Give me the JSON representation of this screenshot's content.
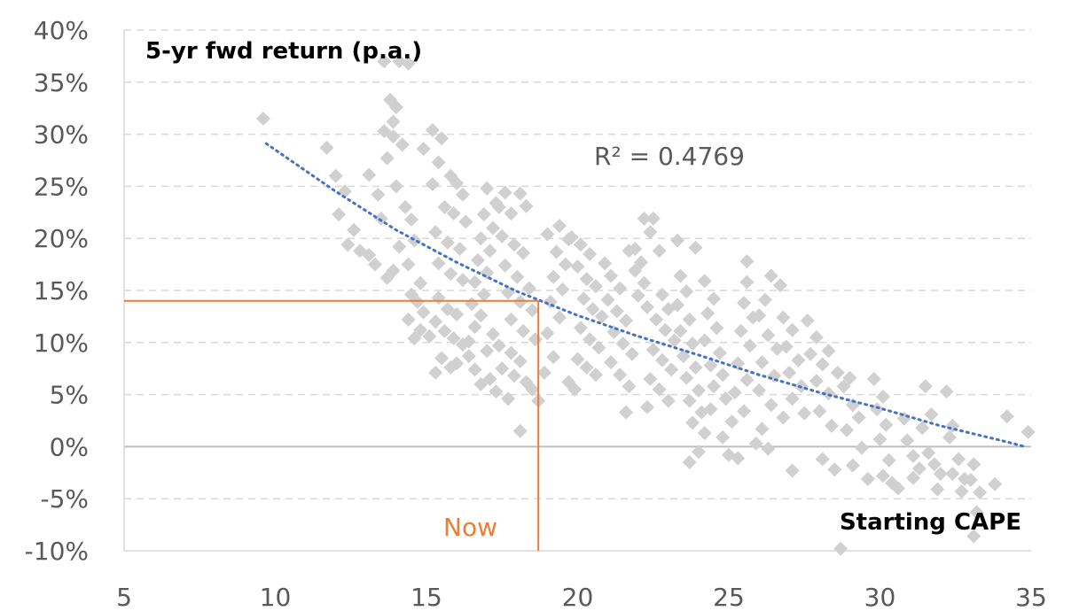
{
  "chart_data": {
    "type": "scatter",
    "title": "",
    "ylabel": "5-yr fwd return (p.a.)",
    "xlabel": "Starting CAPE",
    "xlim": [
      5,
      35
    ],
    "ylim": [
      -10,
      40
    ],
    "x_ticks": [
      "5",
      "10",
      "15",
      "20",
      "25",
      "30",
      "35"
    ],
    "y_ticks": [
      "-10%",
      "-5%",
      "0%",
      "5%",
      "10%",
      "15%",
      "20%",
      "25%",
      "30%",
      "35%",
      "40%"
    ],
    "grid": "horizontal-dashed",
    "r_squared_label": "R² = 0.4769",
    "now_label": "Now",
    "now_point": {
      "x": 18.7,
      "y": 14
    },
    "trendline": {
      "type": "exponential",
      "points": [
        [
          9.7,
          29.1
        ],
        [
          12,
          24.5
        ],
        [
          14,
          20.8
        ],
        [
          16,
          17.7
        ],
        [
          18,
          14.9
        ],
        [
          20,
          12.6
        ],
        [
          22,
          10.6
        ],
        [
          24,
          8.8
        ],
        [
          26,
          6.9
        ],
        [
          28,
          5.2
        ],
        [
          30,
          3.7
        ],
        [
          32,
          2.0
        ],
        [
          34,
          0.6
        ],
        [
          34.8,
          0.0
        ]
      ]
    },
    "series": [
      {
        "values": [
          [
            9.6,
            31.5
          ],
          [
            11.7,
            28.7
          ],
          [
            12.0,
            26.0
          ],
          [
            12.3,
            24.5
          ],
          [
            12.1,
            22.3
          ],
          [
            12.6,
            20.8
          ],
          [
            12.4,
            19.4
          ],
          [
            12.8,
            18.8
          ],
          [
            13.1,
            26.1
          ],
          [
            13.4,
            24.2
          ],
          [
            13.5,
            21.9
          ],
          [
            13.1,
            18.4
          ],
          [
            13.3,
            17.5
          ],
          [
            13.7,
            16.2
          ],
          [
            13.9,
            16.9
          ],
          [
            13.6,
            37.0
          ],
          [
            14.1,
            37.0
          ],
          [
            14.4,
            36.8
          ],
          [
            13.8,
            33.3
          ],
          [
            14.0,
            32.6
          ],
          [
            13.9,
            31.2
          ],
          [
            13.6,
            30.3
          ],
          [
            13.9,
            29.8
          ],
          [
            14.2,
            29.0
          ],
          [
            13.7,
            27.7
          ],
          [
            14.0,
            25.0
          ],
          [
            14.3,
            23.0
          ],
          [
            14.5,
            21.8
          ],
          [
            14.1,
            19.2
          ],
          [
            14.6,
            19.8
          ],
          [
            14.4,
            17.5
          ],
          [
            14.8,
            15.7
          ],
          [
            14.5,
            14.6
          ],
          [
            14.7,
            13.9
          ],
          [
            14.9,
            12.9
          ],
          [
            14.4,
            12.2
          ],
          [
            14.8,
            11.2
          ],
          [
            15.1,
            10.6
          ],
          [
            14.6,
            10.4
          ],
          [
            14.9,
            28.6
          ],
          [
            15.2,
            30.4
          ],
          [
            15.5,
            29.6
          ],
          [
            15.4,
            27.3
          ],
          [
            15.8,
            26.0
          ],
          [
            15.2,
            25.2
          ],
          [
            16.0,
            25.3
          ],
          [
            15.6,
            23.0
          ],
          [
            16.2,
            24.2
          ],
          [
            15.9,
            22.4
          ],
          [
            16.3,
            21.6
          ],
          [
            15.3,
            20.6
          ],
          [
            15.7,
            19.6
          ],
          [
            16.1,
            19.0
          ],
          [
            15.4,
            17.6
          ],
          [
            15.8,
            16.6
          ],
          [
            16.2,
            16.0
          ],
          [
            15.4,
            14.3
          ],
          [
            15.7,
            13.2
          ],
          [
            16.0,
            12.7
          ],
          [
            15.3,
            12.0
          ],
          [
            15.6,
            11.1
          ],
          [
            15.9,
            10.4
          ],
          [
            16.2,
            9.8
          ],
          [
            15.5,
            8.5
          ],
          [
            15.8,
            7.6
          ],
          [
            15.3,
            7.1
          ],
          [
            16.0,
            8.0
          ],
          [
            16.4,
            10.1
          ],
          [
            16.6,
            11.5
          ],
          [
            16.8,
            12.6
          ],
          [
            16.5,
            13.7
          ],
          [
            16.9,
            14.6
          ],
          [
            16.6,
            15.8
          ],
          [
            17.0,
            16.7
          ],
          [
            16.7,
            17.9
          ],
          [
            17.1,
            18.8
          ],
          [
            16.8,
            20.0
          ],
          [
            17.2,
            21.0
          ],
          [
            16.9,
            22.3
          ],
          [
            17.3,
            23.4
          ],
          [
            17.6,
            24.4
          ],
          [
            17.0,
            24.8
          ],
          [
            17.4,
            23.0
          ],
          [
            17.8,
            22.4
          ],
          [
            18.1,
            24.3
          ],
          [
            18.3,
            23.1
          ],
          [
            17.5,
            20.2
          ],
          [
            17.9,
            19.4
          ],
          [
            18.2,
            18.6
          ],
          [
            17.6,
            17.4
          ],
          [
            18.0,
            16.3
          ],
          [
            18.4,
            15.2
          ],
          [
            17.7,
            14.8
          ],
          [
            18.1,
            13.9
          ],
          [
            18.5,
            13.1
          ],
          [
            17.8,
            12.2
          ],
          [
            18.2,
            11.1
          ],
          [
            18.6,
            10.3
          ],
          [
            17.4,
            9.7
          ],
          [
            17.8,
            9.0
          ],
          [
            18.1,
            8.2
          ],
          [
            17.5,
            7.5
          ],
          [
            17.9,
            6.8
          ],
          [
            18.3,
            6.2
          ],
          [
            18.5,
            5.5
          ],
          [
            17.1,
            6.5
          ],
          [
            17.3,
            5.3
          ],
          [
            17.7,
            4.6
          ],
          [
            16.8,
            6.0
          ],
          [
            16.6,
            7.4
          ],
          [
            16.4,
            8.7
          ],
          [
            17.0,
            9.2
          ],
          [
            17.2,
            10.8
          ],
          [
            18.1,
            1.5
          ],
          [
            18.7,
            4.4
          ],
          [
            18.9,
            7.1
          ],
          [
            19.2,
            8.6
          ],
          [
            19.0,
            10.9
          ],
          [
            19.4,
            12.4
          ],
          [
            19.1,
            13.9
          ],
          [
            19.5,
            15.1
          ],
          [
            19.2,
            16.3
          ],
          [
            19.6,
            17.5
          ],
          [
            19.3,
            18.7
          ],
          [
            19.7,
            19.9
          ],
          [
            19.4,
            21.2
          ],
          [
            19.0,
            20.4
          ],
          [
            19.8,
            20.1
          ],
          [
            20.1,
            19.4
          ],
          [
            20.4,
            18.5
          ],
          [
            20.0,
            17.3
          ],
          [
            20.3,
            16.1
          ],
          [
            20.6,
            15.4
          ],
          [
            20.2,
            14.2
          ],
          [
            20.5,
            13.2
          ],
          [
            20.8,
            12.5
          ],
          [
            20.1,
            11.4
          ],
          [
            20.4,
            10.3
          ],
          [
            20.7,
            9.5
          ],
          [
            20.0,
            8.4
          ],
          [
            20.3,
            7.6
          ],
          [
            20.6,
            6.9
          ],
          [
            19.7,
            6.2
          ],
          [
            19.9,
            5.5
          ],
          [
            20.9,
            17.6
          ],
          [
            21.1,
            16.4
          ],
          [
            21.4,
            15.2
          ],
          [
            21.0,
            14.1
          ],
          [
            21.3,
            13.0
          ],
          [
            21.6,
            12.1
          ],
          [
            21.2,
            11.0
          ],
          [
            21.5,
            9.9
          ],
          [
            21.8,
            8.9
          ],
          [
            21.1,
            8.1
          ],
          [
            21.4,
            6.9
          ],
          [
            21.7,
            5.8
          ],
          [
            21.9,
            16.9
          ],
          [
            22.2,
            15.7
          ],
          [
            22.0,
            14.5
          ],
          [
            22.3,
            13.4
          ],
          [
            21.9,
            19.0
          ],
          [
            22.2,
            21.9
          ],
          [
            22.5,
            21.9
          ],
          [
            22.4,
            20.6
          ],
          [
            22.7,
            18.8
          ],
          [
            22.1,
            17.7
          ],
          [
            21.7,
            18.8
          ],
          [
            22.8,
            14.6
          ],
          [
            23.0,
            13.2
          ],
          [
            22.6,
            12.2
          ],
          [
            22.9,
            11.2
          ],
          [
            23.2,
            10.2
          ],
          [
            22.5,
            9.3
          ],
          [
            22.8,
            8.3
          ],
          [
            23.1,
            7.4
          ],
          [
            22.4,
            6.5
          ],
          [
            22.7,
            5.5
          ],
          [
            23.0,
            4.4
          ],
          [
            22.3,
            3.8
          ],
          [
            21.6,
            3.3
          ],
          [
            23.3,
            19.8
          ],
          [
            23.4,
            16.4
          ],
          [
            23.6,
            14.9
          ],
          [
            23.3,
            13.6
          ],
          [
            23.7,
            12.2
          ],
          [
            23.4,
            11.1
          ],
          [
            23.8,
            9.9
          ],
          [
            23.5,
            8.7
          ],
          [
            23.9,
            7.6
          ],
          [
            23.6,
            6.6
          ],
          [
            24.0,
            5.4
          ],
          [
            23.7,
            4.4
          ],
          [
            24.1,
            3.3
          ],
          [
            23.8,
            2.3
          ],
          [
            23.9,
            19.1
          ],
          [
            24.2,
            15.9
          ],
          [
            24.5,
            14.2
          ],
          [
            24.3,
            12.8
          ],
          [
            24.6,
            11.4
          ],
          [
            24.2,
            10.2
          ],
          [
            24.7,
            9.0
          ],
          [
            24.4,
            7.8
          ],
          [
            24.8,
            6.9
          ],
          [
            24.5,
            5.8
          ],
          [
            24.9,
            4.6
          ],
          [
            24.4,
            3.6
          ],
          [
            24.2,
            1.3
          ],
          [
            24.0,
            -0.5
          ],
          [
            23.7,
            -1.5
          ],
          [
            24.8,
            0.9
          ],
          [
            25.0,
            -0.8
          ],
          [
            25.3,
            -1.1
          ],
          [
            25.1,
            2.4
          ],
          [
            25.5,
            3.4
          ],
          [
            25.2,
            5.2
          ],
          [
            25.6,
            6.4
          ],
          [
            25.3,
            8.0
          ],
          [
            25.7,
            9.7
          ],
          [
            25.4,
            11.1
          ],
          [
            25.8,
            12.4
          ],
          [
            25.5,
            13.8
          ],
          [
            25.6,
            15.8
          ],
          [
            25.6,
            17.8
          ],
          [
            26.0,
            12.6
          ],
          [
            26.2,
            14.1
          ],
          [
            26.4,
            16.4
          ],
          [
            26.7,
            15.5
          ],
          [
            26.3,
            10.7
          ],
          [
            26.6,
            9.4
          ],
          [
            26.1,
            8.1
          ],
          [
            26.5,
            6.8
          ],
          [
            26.0,
            5.4
          ],
          [
            26.4,
            4.0
          ],
          [
            26.8,
            2.8
          ],
          [
            26.1,
            1.7
          ],
          [
            25.9,
            0.3
          ],
          [
            26.3,
            -0.2
          ],
          [
            26.8,
            12.4
          ],
          [
            27.1,
            11.2
          ],
          [
            26.9,
            9.6
          ],
          [
            27.3,
            8.3
          ],
          [
            27.0,
            7.1
          ],
          [
            27.4,
            5.8
          ],
          [
            27.1,
            4.6
          ],
          [
            27.5,
            3.2
          ],
          [
            27.1,
            -2.3
          ],
          [
            27.6,
            12.1
          ],
          [
            27.9,
            10.5
          ],
          [
            27.7,
            8.9
          ],
          [
            28.1,
            7.9
          ],
          [
            27.9,
            6.3
          ],
          [
            28.3,
            5.1
          ],
          [
            28.0,
            3.4
          ],
          [
            28.4,
            2.0
          ],
          [
            28.1,
            -1.2
          ],
          [
            28.5,
            -2.2
          ],
          [
            28.7,
            -9.8
          ],
          [
            28.3,
            9.2
          ],
          [
            28.6,
            7.1
          ],
          [
            28.8,
            5.8
          ],
          [
            29.0,
            6.6
          ],
          [
            29.1,
            4.0
          ],
          [
            29.3,
            2.8
          ],
          [
            28.9,
            1.6
          ],
          [
            29.4,
            -0.1
          ],
          [
            29.1,
            -1.8
          ],
          [
            29.6,
            -3.1
          ],
          [
            29.8,
            6.5
          ],
          [
            30.1,
            4.8
          ],
          [
            29.9,
            3.6
          ],
          [
            30.2,
            2.1
          ],
          [
            30.0,
            0.7
          ],
          [
            30.3,
            -1.3
          ],
          [
            30.1,
            -2.8
          ],
          [
            30.4,
            -3.5
          ],
          [
            30.6,
            -4.0
          ],
          [
            30.8,
            2.7
          ],
          [
            30.9,
            0.6
          ],
          [
            31.1,
            -0.9
          ],
          [
            31.3,
            -2.1
          ],
          [
            31.1,
            -3.0
          ],
          [
            31.5,
            5.8
          ],
          [
            31.7,
            3.1
          ],
          [
            31.4,
            1.8
          ],
          [
            31.6,
            -0.6
          ],
          [
            31.8,
            -1.7
          ],
          [
            32.0,
            -2.6
          ],
          [
            31.9,
            -4.1
          ],
          [
            32.2,
            5.3
          ],
          [
            32.4,
            2.0
          ],
          [
            32.3,
            0.9
          ],
          [
            32.6,
            -1.2
          ],
          [
            32.4,
            -2.6
          ],
          [
            32.8,
            -3.1
          ],
          [
            32.7,
            -4.3
          ],
          [
            33.1,
            -1.7
          ],
          [
            33.0,
            -3.2
          ],
          [
            33.3,
            -4.4
          ],
          [
            33.2,
            -6.3
          ],
          [
            33.1,
            -8.6
          ],
          [
            33.8,
            -3.6
          ],
          [
            34.2,
            2.9
          ],
          [
            34.9,
            1.4
          ]
        ]
      }
    ]
  }
}
